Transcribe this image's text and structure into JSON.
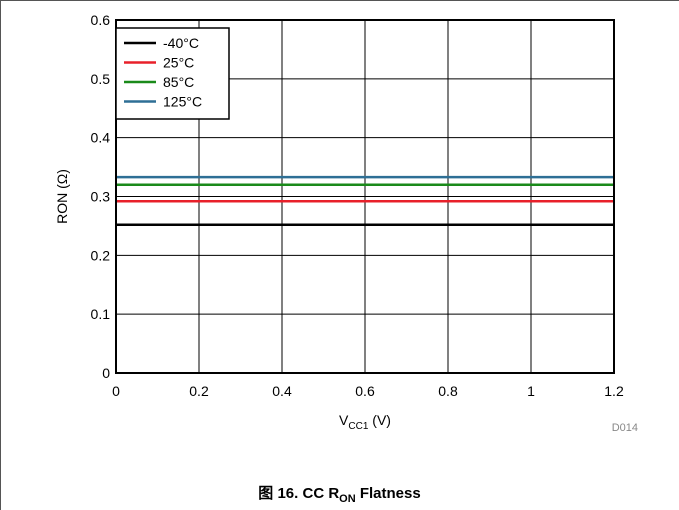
{
  "figure": {
    "caption_prefix": "图 16. CC R",
    "caption_sub": "ON",
    "caption_suffix": " Flatness",
    "code": "D014"
  },
  "chart_data": {
    "type": "line",
    "xlabel_main": "V",
    "xlabel_sub": "CC1",
    "xlabel_unit": " (V)",
    "ylabel": "RON (Ω)",
    "xlim": [
      0,
      1.2
    ],
    "ylim": [
      0,
      0.6
    ],
    "xticks": [
      0,
      0.2,
      0.4,
      0.6,
      0.8,
      1,
      1.2
    ],
    "xtick_labels": [
      "0",
      "0.2",
      "0.4",
      "0.6",
      "0.8",
      "1",
      "1.2"
    ],
    "yticks": [
      0,
      0.1,
      0.2,
      0.3,
      0.4,
      0.5,
      0.6
    ],
    "ytick_labels": [
      "0",
      "0.1",
      "0.2",
      "0.3",
      "0.4",
      "0.5",
      "0.6"
    ],
    "grid": true,
    "legend": "top-left",
    "series": [
      {
        "name": "-40°C",
        "color": "#000000",
        "x": [
          0,
          1.2
        ],
        "y": [
          0.252,
          0.252
        ]
      },
      {
        "name": "25°C",
        "color": "#e8202a",
        "x": [
          0,
          1.2
        ],
        "y": [
          0.292,
          0.292
        ]
      },
      {
        "name": "85°C",
        "color": "#1a8a1a",
        "x": [
          0,
          1.2
        ],
        "y": [
          0.32,
          0.32
        ]
      },
      {
        "name": "125°C",
        "color": "#2e6f95",
        "x": [
          0,
          1.2
        ],
        "y": [
          0.333,
          0.333
        ]
      }
    ]
  }
}
